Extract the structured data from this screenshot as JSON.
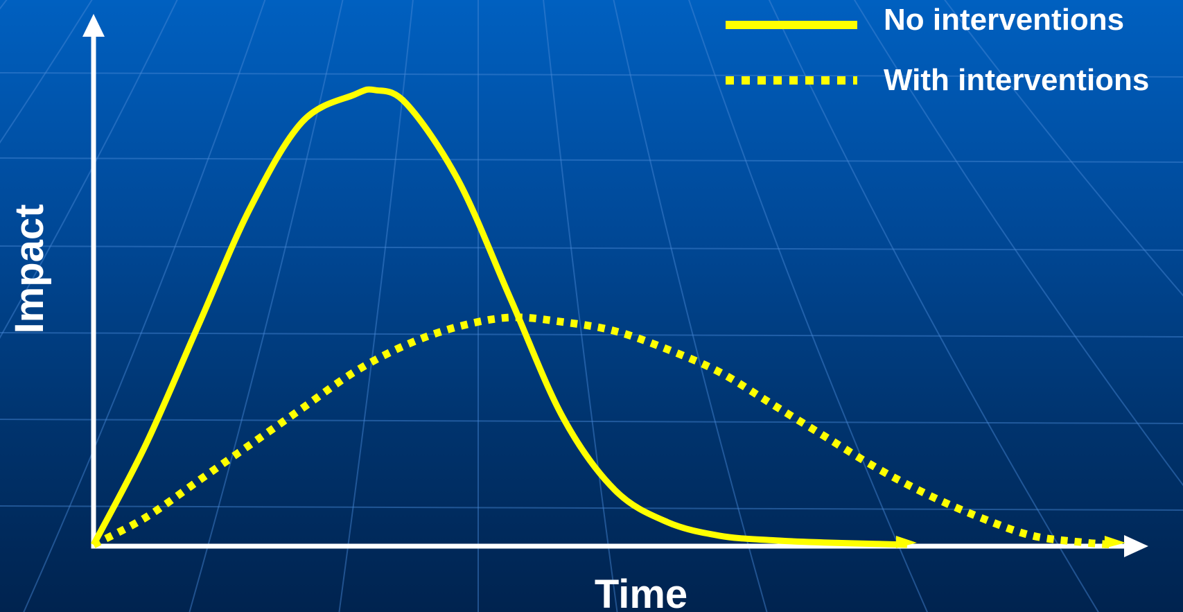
{
  "colors": {
    "background_top": "#0060c0",
    "background_bottom": "#00234f",
    "axis": "#ffffff",
    "curve": "#ffff00",
    "text": "#ffffff"
  },
  "chart_data": {
    "type": "line",
    "title": "",
    "xlabel": "Time",
    "ylabel": "Impact",
    "xlim": [
      0,
      100
    ],
    "ylim": [
      0,
      100
    ],
    "axis_ticks": false,
    "axis_arrows": true,
    "grid": false,
    "legend_position": "top-right",
    "series": [
      {
        "name": "No interventions",
        "line_style": "solid",
        "color": "#ffff00",
        "x": [
          0,
          5,
          10,
          15,
          20,
          25,
          27,
          30,
          35,
          40,
          45,
          50,
          55,
          60,
          65,
          70,
          75,
          78
        ],
        "y": [
          0,
          22,
          48,
          74,
          93,
          99,
          100,
          97,
          80,
          54,
          28,
          12,
          5,
          2,
          1,
          0.5,
          0.2,
          0
        ]
      },
      {
        "name": "With interventions",
        "line_style": "dotted",
        "color": "#ffff00",
        "x": [
          0,
          5,
          10,
          15,
          20,
          25,
          30,
          35,
          40,
          45,
          50,
          55,
          60,
          65,
          70,
          75,
          80,
          85,
          90,
          95,
          98
        ],
        "y": [
          0,
          6,
          14,
          22,
          30,
          38,
          44,
          48,
          50,
          49,
          47,
          43,
          38,
          31,
          24,
          17,
          11,
          6,
          2,
          0.5,
          0
        ]
      }
    ]
  }
}
